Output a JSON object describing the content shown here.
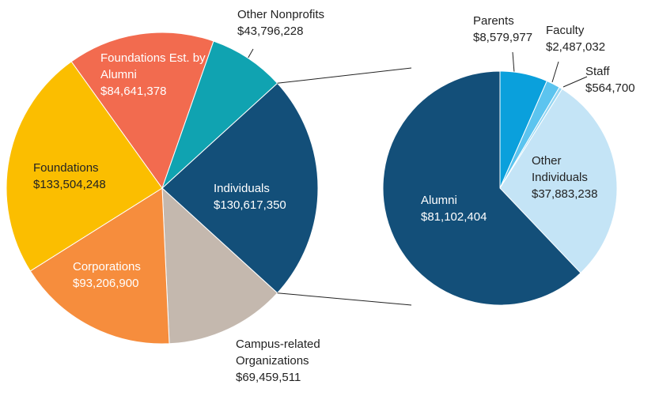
{
  "chart_data": [
    {
      "type": "pie",
      "categories": [
        "Individuals",
        "Campus-related Organizations",
        "Corporations",
        "Foundations",
        "Foundations Est. by Alumni",
        "Other Nonprofits"
      ],
      "values": [
        130617350,
        69459511,
        93206900,
        133504248,
        84641378,
        43796228
      ],
      "value_labels": [
        "$130,617,350",
        "$69,459,511",
        "$93,206,900",
        "$133,504,248",
        "$84,641,378",
        "$43,796,228"
      ],
      "colors": [
        "#134f79",
        "#c4b8ae",
        "#f68d3d",
        "#fbbe00",
        "#f26b4f",
        "#10a3b1"
      ]
    },
    {
      "type": "pie",
      "categories": [
        "Parents",
        "Faculty",
        "Staff",
        "Other Individuals",
        "Alumni"
      ],
      "values": [
        8579977,
        2487032,
        564700,
        37883238,
        81102404
      ],
      "value_labels": [
        "$8,579,977",
        "$2,487,032",
        "$564,700",
        "$37,883,238",
        "$81,102,404"
      ],
      "colors": [
        "#0aa0dc",
        "#5cc4ef",
        "#93d5f2",
        "#c4e4f6",
        "#134f79"
      ]
    }
  ]
}
